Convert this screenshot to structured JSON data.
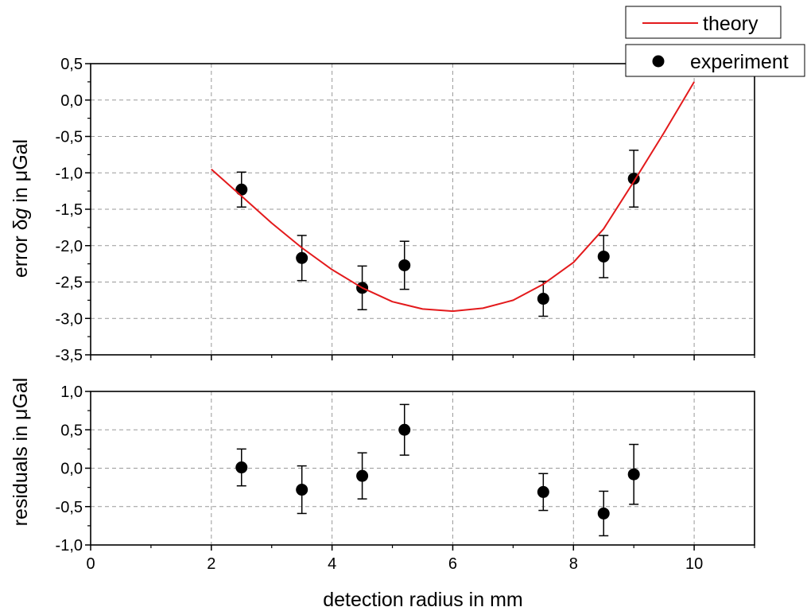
{
  "chart_data": [
    {
      "type": "scatter",
      "panel": "top",
      "ylabel_prefix": "error δ",
      "ylabel_var": "g",
      "ylabel_suffix": " in μGal",
      "xlim": [
        0,
        11
      ],
      "ylim": [
        -3.5,
        0.5
      ],
      "yticks": [
        -3.5,
        -3.0,
        -2.5,
        -2.0,
        -1.5,
        -1.0,
        -0.5,
        0.0,
        0.5
      ],
      "ytick_labels": [
        "-3,5",
        "-3,0",
        "-2,5",
        "-2,0",
        "-1,5",
        "-1,0",
        "-0,5",
        "0,0",
        "0,5"
      ],
      "grid": true,
      "series": [
        {
          "name": "experiment",
          "color": "#000000",
          "x": [
            2.5,
            3.5,
            4.5,
            5.2,
            7.5,
            8.5,
            9.0
          ],
          "y": [
            -1.23,
            -2.17,
            -2.58,
            -2.27,
            -2.73,
            -2.15,
            -1.08
          ],
          "yerr": [
            0.24,
            0.31,
            0.3,
            0.33,
            0.24,
            0.29,
            0.39
          ]
        },
        {
          "name": "theory",
          "color": "#e31a1c",
          "type": "line",
          "x": [
            2.0,
            2.5,
            3.0,
            3.5,
            4.0,
            4.5,
            5.0,
            5.5,
            6.0,
            6.5,
            7.0,
            7.5,
            8.0,
            8.5,
            9.0,
            9.5,
            10.0
          ],
          "y": [
            -0.95,
            -1.32,
            -1.69,
            -2.03,
            -2.33,
            -2.58,
            -2.77,
            -2.87,
            -2.9,
            -2.86,
            -2.75,
            -2.53,
            -2.23,
            -1.77,
            -1.12,
            -0.45,
            0.25
          ]
        }
      ]
    },
    {
      "type": "scatter",
      "panel": "bottom",
      "xlabel": "detection radius in mm",
      "ylabel": "residuals in μGal",
      "xlim": [
        0,
        11
      ],
      "ylim": [
        -1.0,
        1.0
      ],
      "xticks": [
        0,
        2,
        4,
        6,
        8,
        10
      ],
      "xtick_labels": [
        "0",
        "2",
        "4",
        "6",
        "8",
        "10"
      ],
      "yticks": [
        -1.0,
        -0.5,
        0.0,
        0.5,
        1.0
      ],
      "ytick_labels": [
        "-1,0",
        "-0,5",
        "0,0",
        "0,5",
        "1,0"
      ],
      "grid": true,
      "series": [
        {
          "name": "experiment",
          "color": "#000000",
          "x": [
            2.5,
            3.5,
            4.5,
            5.2,
            7.5,
            8.5,
            9.0
          ],
          "y": [
            0.01,
            -0.28,
            -0.1,
            0.5,
            -0.31,
            -0.59,
            -0.08
          ],
          "yerr": [
            0.24,
            0.31,
            0.3,
            0.33,
            0.24,
            0.29,
            0.39
          ]
        }
      ]
    }
  ],
  "legend": {
    "placement": "top-right",
    "entries": [
      {
        "label": "theory",
        "kind": "line",
        "color": "#e31a1c"
      },
      {
        "label": "experiment",
        "kind": "marker",
        "color": "#000000"
      }
    ]
  }
}
